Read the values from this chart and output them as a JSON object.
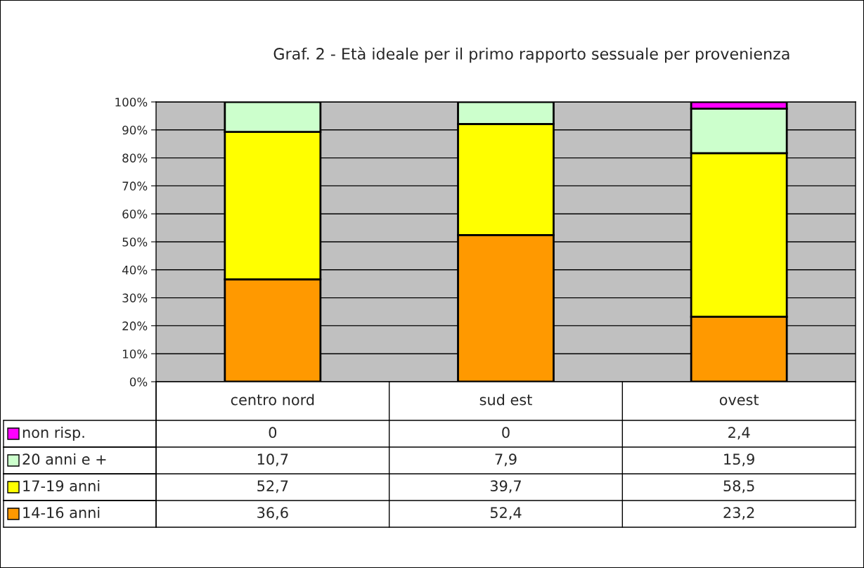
{
  "chart_data": {
    "type": "bar",
    "title": "Graf. 2 - Età ideale per il primo rapporto sessuale per provenienza",
    "categories": [
      "centro nord",
      "sud est",
      "ovest"
    ],
    "stacked": true,
    "series": [
      {
        "name": "14-16 anni",
        "color": "#ff9900",
        "values": [
          36.6,
          52.4,
          23.2
        ],
        "value_labels": [
          "36,6",
          "52,4",
          "23,2"
        ]
      },
      {
        "name": "17-19 anni",
        "color": "#ffff00",
        "values": [
          52.7,
          39.7,
          58.5
        ],
        "value_labels": [
          "52,7",
          "39,7",
          "58,5"
        ]
      },
      {
        "name": "20 anni e +",
        "color": "#ccffcc",
        "values": [
          10.7,
          7.9,
          15.9
        ],
        "value_labels": [
          "10,7",
          "7,9",
          "15,9"
        ]
      },
      {
        "name": "non risp.",
        "color": "#ff00ff",
        "values": [
          0,
          0,
          2.4
        ],
        "value_labels": [
          "0",
          "0",
          "2,4"
        ]
      }
    ],
    "ylim": [
      0,
      100
    ],
    "yticks": [
      {
        "value": 0,
        "label": "0%"
      },
      {
        "value": 10,
        "label": "10%"
      },
      {
        "value": 20,
        "label": "20%"
      },
      {
        "value": 30,
        "label": "30%"
      },
      {
        "value": 40,
        "label": "40%"
      },
      {
        "value": 50,
        "label": "50%"
      },
      {
        "value": 60,
        "label": "60%"
      },
      {
        "value": 70,
        "label": "70%"
      },
      {
        "value": 80,
        "label": "80%"
      },
      {
        "value": 90,
        "label": "90%"
      },
      {
        "value": 100,
        "label": "100%"
      }
    ],
    "grid": "y",
    "legend": "bottom"
  }
}
